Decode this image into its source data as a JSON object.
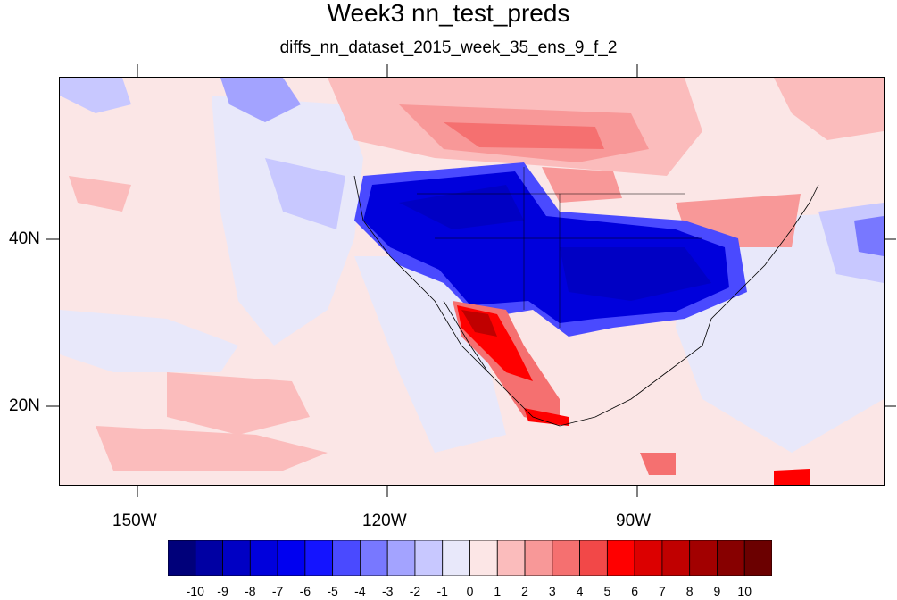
{
  "title": "Week3 nn_test_preds",
  "subtitle": "diffs_nn_dataset_2015_week_35_ens_9_f_2",
  "axes": {
    "lon_labels": [
      "150W",
      "120W",
      "90W"
    ],
    "lat_labels": [
      "40N",
      "20N"
    ],
    "lon_range": [
      -159,
      -60
    ],
    "lat_range": [
      10.5,
      59
    ]
  },
  "colorbar": {
    "labels": [
      "-10",
      "-9",
      "-8",
      "-7",
      "-6",
      "-5",
      "-4",
      "-3",
      "-2",
      "-1",
      "0",
      "1",
      "2",
      "3",
      "4",
      "5",
      "6",
      "7",
      "8",
      "9",
      "10"
    ],
    "colors": [
      "#00007a",
      "#0000a3",
      "#0000c4",
      "#0000dc",
      "#0000f0",
      "#1414ff",
      "#4a4aff",
      "#7878ff",
      "#a3a3ff",
      "#c8c8ff",
      "#e8e8fa",
      "#fce6e6",
      "#fbbcbc",
      "#f89898",
      "#f57070",
      "#f24848",
      "#ff0000",
      "#dc0000",
      "#c00000",
      "#a20000",
      "#870000",
      "#6b0000"
    ]
  },
  "colors": {
    "background_field": "#fbe6e6",
    "strong_negative": "#0000c4",
    "strong_positive": "#c00000"
  }
}
